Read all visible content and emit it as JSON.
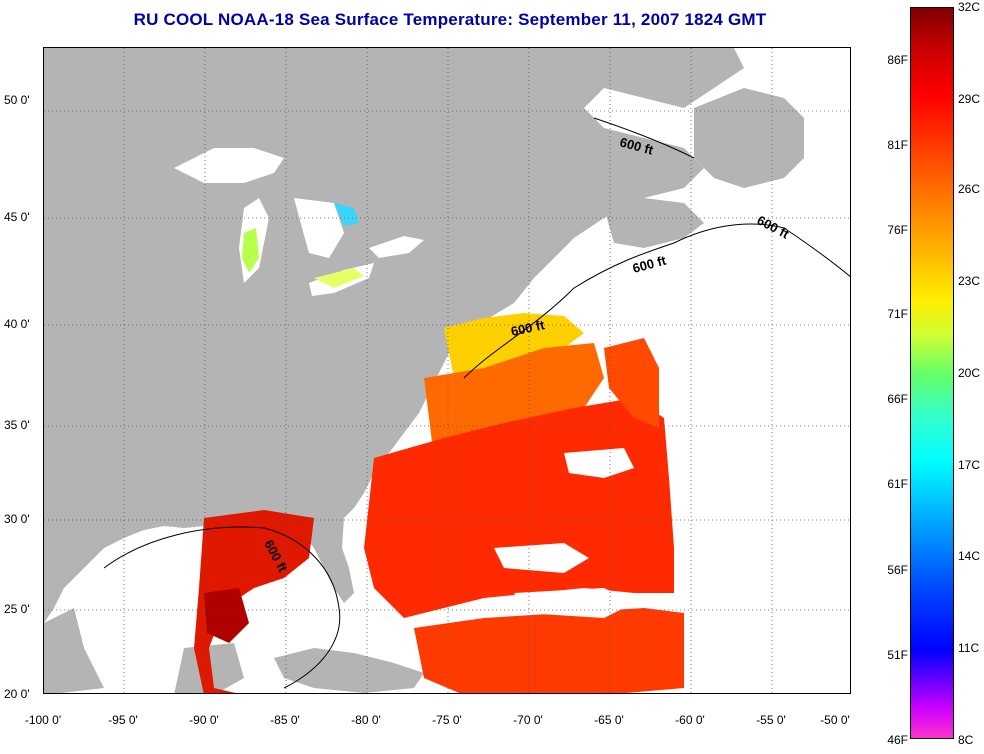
{
  "title": "RU COOL  NOAA-18  Sea Surface Temperature:  September 11, 2007 1824 GMT",
  "lat_labels": [
    "50 0'",
    "45 0'",
    "40 0'",
    "35 0'",
    "30 0'",
    "25 0'",
    "20 0'"
  ],
  "lon_labels": [
    "-100 0'",
    "-95 0'",
    "-90 0'",
    "-85 0'",
    "-80 0'",
    "-75 0'",
    "-70 0'",
    "-65 0'",
    "-60 0'",
    "-55 0'",
    "-50 0'"
  ],
  "contour_labels": [
    "600 ft",
    "600 ft",
    "600 ft",
    "600 ft",
    "600 ft"
  ],
  "colorbar": {
    "fahrenheit": [
      "86F",
      "81F",
      "76F",
      "71F",
      "66F",
      "61F",
      "56F",
      "51F",
      "46F"
    ],
    "celsius": [
      "32C",
      "29C",
      "26C",
      "23C",
      "20C",
      "17C",
      "14C",
      "11C",
      "8C"
    ]
  },
  "colors": {
    "title": "#0000a8",
    "land": "#b4b4b4",
    "warm": "#ff2a00",
    "hot": "#c00000"
  }
}
